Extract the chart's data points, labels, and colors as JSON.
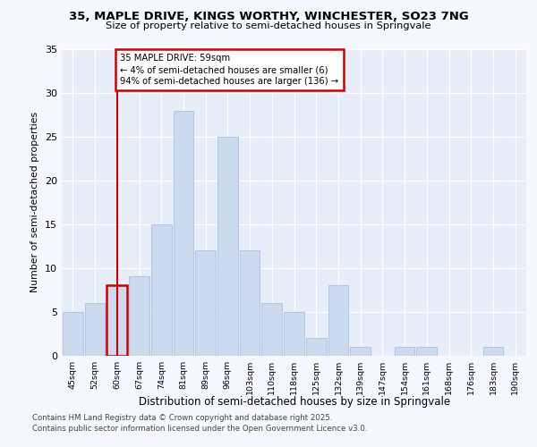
{
  "title1": "35, MAPLE DRIVE, KINGS WORTHY, WINCHESTER, SO23 7NG",
  "title2": "Size of property relative to semi-detached houses in Springvale",
  "xlabel": "Distribution of semi-detached houses by size in Springvale",
  "ylabel": "Number of semi-detached properties",
  "categories": [
    "45sqm",
    "52sqm",
    "60sqm",
    "67sqm",
    "74sqm",
    "81sqm",
    "89sqm",
    "96sqm",
    "103sqm",
    "110sqm",
    "118sqm",
    "125sqm",
    "132sqm",
    "139sqm",
    "147sqm",
    "154sqm",
    "161sqm",
    "168sqm",
    "176sqm",
    "183sqm",
    "190sqm"
  ],
  "values": [
    5,
    6,
    8,
    9,
    15,
    28,
    12,
    25,
    12,
    6,
    5,
    2,
    8,
    1,
    0,
    1,
    1,
    0,
    0,
    1,
    0
  ],
  "bar_color": "#ccdaf0",
  "bar_edge_color": "#aec6e8",
  "highlight_index": 2,
  "highlight_color": "#cc0000",
  "annotation_text": "35 MAPLE DRIVE: 59sqm\n← 4% of semi-detached houses are smaller (6)\n94% of semi-detached houses are larger (136) →",
  "annotation_box_color": "#ffffff",
  "annotation_box_edge": "#cc0000",
  "footer1": "Contains HM Land Registry data © Crown copyright and database right 2025.",
  "footer2": "Contains public sector information licensed under the Open Government Licence v3.0.",
  "ylim": [
    0,
    35
  ],
  "yticks": [
    0,
    5,
    10,
    15,
    20,
    25,
    30,
    35
  ],
  "bg_color": "#f5f8ff",
  "plot_bg_color": "#e8eef8",
  "grid_color": "#ffffff"
}
